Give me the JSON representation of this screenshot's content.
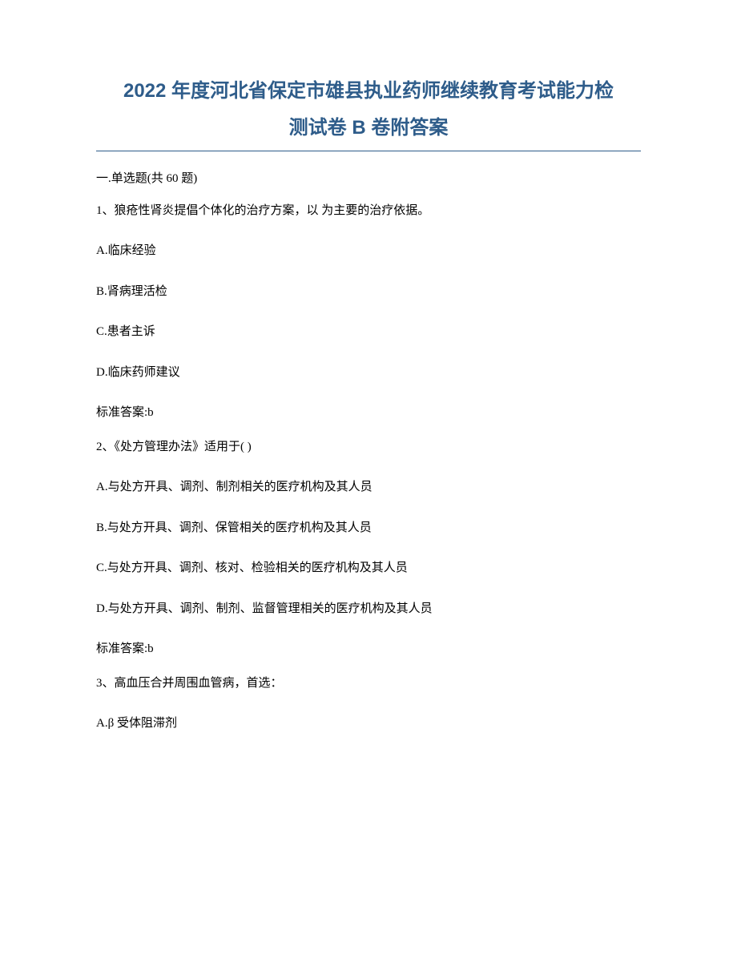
{
  "title_line1": "2022 年度河北省保定市雄县执业药师继续教育考试能力检",
  "title_line2": "测试卷 B 卷附答案",
  "section_header": "一.单选题(共 60 题)",
  "questions": [
    {
      "text": "1、狼疮性肾炎提倡个体化的治疗方案，以 为主要的治疗依据。",
      "options": [
        "A.临床经验",
        "B.肾病理活检",
        "C.患者主诉",
        "D.临床药师建议"
      ],
      "answer": "标准答案:b"
    },
    {
      "text": "2、《处方管理办法》适用于( )",
      "options": [
        "A.与处方开具、调剂、制剂相关的医疗机构及其人员",
        "B.与处方开具、调剂、保管相关的医疗机构及其人员",
        "C.与处方开具、调剂、核对、检验相关的医疗机构及其人员",
        "D.与处方开具、调剂、制剂、监督管理相关的医疗机构及其人员"
      ],
      "answer": "标准答案:b"
    },
    {
      "text": "3、高血压合并周围血管病，首选：",
      "options": [
        "A.β 受体阻滞剂"
      ],
      "answer": ""
    }
  ],
  "colors": {
    "title_color": "#2e5c8a",
    "text_color": "#000000",
    "background": "#ffffff",
    "divider_color": "#2e5c8a"
  },
  "typography": {
    "title_fontsize": 24,
    "body_fontsize": 15,
    "title_font": "Microsoft YaHei",
    "body_font": "SimSun"
  }
}
